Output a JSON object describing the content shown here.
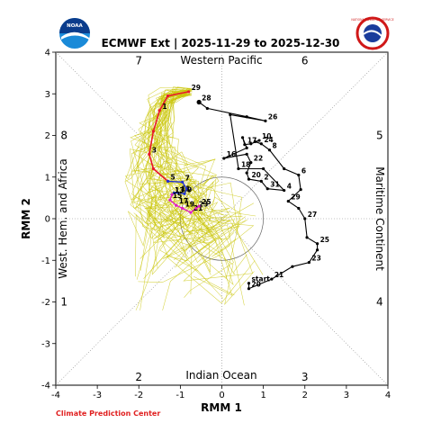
{
  "title": "ECMWF Ext | 2025-11-29 to 2025-12-30",
  "footer": "Climate Prediction Center",
  "colors": {
    "ensemble": "#c8c400",
    "early": "#e8182a",
    "blue": "#2030d0",
    "magenta": "#e020c0",
    "obs": "#000000",
    "footer": "#e02020"
  },
  "logos": {
    "left": "NOAA",
    "right": "NATIONAL WEATHER SERVICE"
  },
  "chart_data": {
    "type": "line",
    "title": "ECMWF Ext | 2025-11-29 to 2025-12-30",
    "xlabel": "RMM 1",
    "ylabel": "RMM 2",
    "xlim": [
      -4,
      4
    ],
    "ylim": [
      -4,
      4
    ],
    "ticks": [
      -4,
      -3,
      -2,
      -1,
      0,
      1,
      2,
      3,
      4
    ],
    "unit_circle_radius": 1,
    "regions": {
      "top": "Western Pacific",
      "bottom": "Indian Ocean",
      "left": "West. Hem. and Africa",
      "right": "Maritime Continent"
    },
    "phases": [
      {
        "label": "7",
        "x": -2,
        "y": 3.8
      },
      {
        "label": "6",
        "x": 2,
        "y": 3.8
      },
      {
        "label": "8",
        "x": -3.8,
        "y": 2
      },
      {
        "label": "5",
        "x": 3.8,
        "y": 2
      },
      {
        "label": "1",
        "x": -3.8,
        "y": -2
      },
      {
        "label": "4",
        "x": 3.8,
        "y": -2
      },
      {
        "label": "2",
        "x": -2,
        "y": -3.8
      },
      {
        "label": "3",
        "x": 2,
        "y": -3.8
      }
    ],
    "observed": [
      {
        "day": "start",
        "x": 0.65,
        "y": -1.55
      },
      {
        "day": "20",
        "x": 0.65,
        "y": -1.68
      },
      {
        "day": "21",
        "x": 1.2,
        "y": -1.45
      },
      {
        "day": "",
        "x": 1.7,
        "y": -1.15
      },
      {
        "day": "23",
        "x": 2.1,
        "y": -1.05
      },
      {
        "day": "",
        "x": 2.3,
        "y": -0.75
      },
      {
        "day": "25",
        "x": 2.3,
        "y": -0.6
      },
      {
        "day": "",
        "x": 2.05,
        "y": -0.45
      },
      {
        "day": "27",
        "x": 2.0,
        "y": 0.0
      },
      {
        "day": "",
        "x": 1.85,
        "y": 0.25
      },
      {
        "day": "29",
        "x": 1.6,
        "y": 0.42
      },
      {
        "day": "",
        "x": 1.9,
        "y": 0.7
      },
      {
        "day": "6",
        "x": 1.85,
        "y": 1.05
      },
      {
        "day": "",
        "x": 1.5,
        "y": 1.2
      },
      {
        "day": "8",
        "x": 1.15,
        "y": 1.65
      },
      {
        "day": "24",
        "x": 0.95,
        "y": 1.8
      },
      {
        "day": "",
        "x": 0.8,
        "y": 1.85
      },
      {
        "day": "10",
        "x": 0.9,
        "y": 1.88
      },
      {
        "day": "",
        "x": 0.7,
        "y": 1.8
      },
      {
        "day": "17",
        "x": 0.55,
        "y": 1.78
      },
      {
        "day": "",
        "x": 0.5,
        "y": 1.95
      },
      {
        "day": "",
        "x": 0.6,
        "y": 1.7
      },
      {
        "day": "16",
        "x": 0.05,
        "y": 1.45
      },
      {
        "day": "",
        "x": 0.6,
        "y": 1.55
      },
      {
        "day": "22",
        "x": 0.7,
        "y": 1.35
      },
      {
        "day": "",
        "x": 0.6,
        "y": 1.1
      },
      {
        "day": "20",
        "x": 0.65,
        "y": 0.95
      },
      {
        "day": "2",
        "x": 0.95,
        "y": 0.9
      },
      {
        "day": "31",
        "x": 1.1,
        "y": 0.72
      },
      {
        "day": "4",
        "x": 1.5,
        "y": 0.68
      },
      {
        "day": "",
        "x": 1.0,
        "y": 1.2
      },
      {
        "day": "18",
        "x": 0.4,
        "y": 1.2
      },
      {
        "day": "",
        "x": 0.2,
        "y": 2.5
      },
      {
        "day": "26",
        "x": 1.05,
        "y": 2.35
      },
      {
        "day": "",
        "x": 0.6,
        "y": 2.45
      },
      {
        "day": "",
        "x": -0.35,
        "y": 2.65
      },
      {
        "day": "28",
        "x": -0.55,
        "y": 2.8
      }
    ],
    "forecast_red": [
      {
        "day": "29",
        "x": -0.8,
        "y": 3.05
      },
      {
        "day": "",
        "x": -1.3,
        "y": 2.95
      },
      {
        "day": "1",
        "x": -1.5,
        "y": 2.6
      },
      {
        "day": "",
        "x": -1.65,
        "y": 2.1
      },
      {
        "day": "3",
        "x": -1.75,
        "y": 1.55
      },
      {
        "day": "",
        "x": -1.65,
        "y": 1.2
      },
      {
        "day": "",
        "x": -1.3,
        "y": 0.9
      }
    ],
    "forecast_blue": [
      {
        "day": "5",
        "x": -1.3,
        "y": 0.9
      },
      {
        "day": "7",
        "x": -0.95,
        "y": 0.88
      },
      {
        "day": "",
        "x": -0.85,
        "y": 0.72
      },
      {
        "day": "9",
        "x": -0.9,
        "y": 0.6
      },
      {
        "day": "11",
        "x": -1.05,
        "y": 0.62
      },
      {
        "day": "",
        "x": -1.15,
        "y": 0.62
      },
      {
        "day": "13",
        "x": -1.2,
        "y": 0.58
      }
    ],
    "forecast_magenta": [
      {
        "day": "13",
        "x": -1.2,
        "y": 0.58
      },
      {
        "day": "15",
        "x": -1.25,
        "y": 0.45
      },
      {
        "day": "17",
        "x": -1.1,
        "y": 0.32
      },
      {
        "day": "19",
        "x": -0.95,
        "y": 0.25
      },
      {
        "day": "21",
        "x": -0.75,
        "y": 0.15
      },
      {
        "day": "23",
        "x": -0.62,
        "y": 0.25
      },
      {
        "day": "25",
        "x": -0.55,
        "y": 0.3
      }
    ]
  }
}
